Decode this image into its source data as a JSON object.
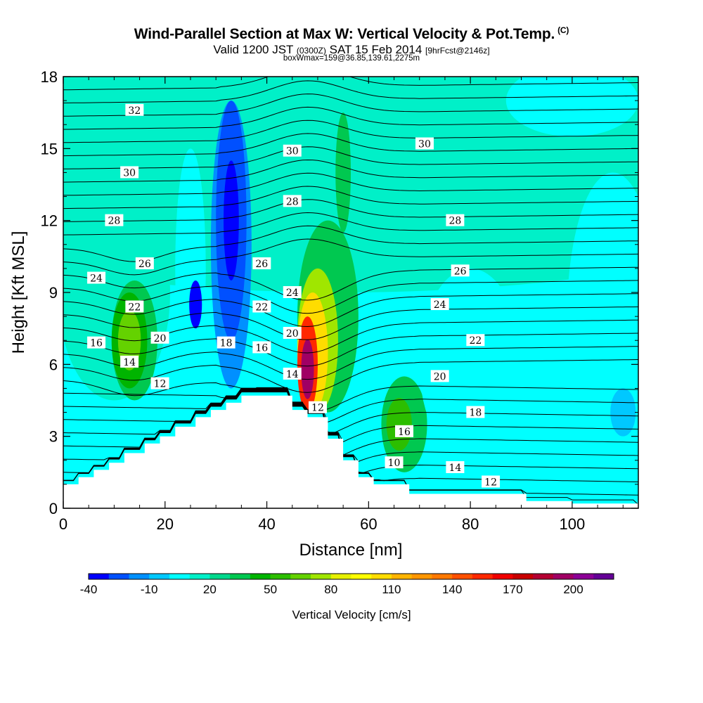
{
  "header": {
    "title": "Wind-Parallel Section at Max W: Vertical Velocity & Pot.Temp.",
    "title_mark": "(C)",
    "line2_a": "Valid 1200 JST",
    "line2_b": "(0300Z)",
    "line2_c": "SAT 15 Feb 2014",
    "line2_d": "[9hrFcst@2146z]",
    "line3": "boxWmax=159@36.85,139.61,2275m"
  },
  "chart_data": {
    "type": "heatmap",
    "xlabel": "Distance [nm]",
    "ylabel": "Height [Kft MSL]",
    "xlim": [
      0,
      113
    ],
    "ylim": [
      0,
      18
    ],
    "x_ticks": [
      "0",
      "20",
      "40",
      "60",
      "80",
      "100"
    ],
    "y_ticks": [
      "0",
      "3",
      "6",
      "9",
      "12",
      "15",
      "18"
    ],
    "colorbar": {
      "label": "Vertical Velocity [cm/s]",
      "tick_labels": [
        "-40",
        "-10",
        "20",
        "50",
        "80",
        "110",
        "140",
        "170",
        "200"
      ],
      "levels": [
        -40,
        -30,
        -20,
        -10,
        0,
        10,
        20,
        30,
        40,
        50,
        60,
        70,
        80,
        90,
        100,
        110,
        120,
        130,
        140,
        150,
        160,
        170,
        180,
        190,
        200,
        210
      ],
      "colors": [
        "#0000ff",
        "#0050ff",
        "#0090ff",
        "#00c8ff",
        "#00ffff",
        "#00f0c8",
        "#00d88c",
        "#00c850",
        "#00b400",
        "#2cbe00",
        "#64d200",
        "#a0e600",
        "#e6f000",
        "#ffff00",
        "#ffdc00",
        "#ffb400",
        "#ff9600",
        "#ff7800",
        "#ff5000",
        "#ff2800",
        "#f00000",
        "#c80000",
        "#b40032",
        "#a00064",
        "#8c0096",
        "#640096"
      ]
    },
    "terrain_kft": [
      [
        0,
        1.0
      ],
      [
        3,
        1.0
      ],
      [
        3,
        1.3
      ],
      [
        6,
        1.3
      ],
      [
        6,
        1.6
      ],
      [
        9,
        1.6
      ],
      [
        9,
        1.9
      ],
      [
        12,
        1.9
      ],
      [
        12,
        2.3
      ],
      [
        16,
        2.3
      ],
      [
        16,
        2.7
      ],
      [
        19,
        2.7
      ],
      [
        19,
        3.0
      ],
      [
        22,
        3.0
      ],
      [
        22,
        3.4
      ],
      [
        26,
        3.4
      ],
      [
        26,
        3.8
      ],
      [
        29,
        3.8
      ],
      [
        29,
        4.1
      ],
      [
        32,
        4.1
      ],
      [
        32,
        4.4
      ],
      [
        35,
        4.4
      ],
      [
        35,
        4.7
      ],
      [
        45,
        4.7
      ],
      [
        45,
        4.1
      ],
      [
        48,
        4.1
      ],
      [
        48,
        3.8
      ],
      [
        52,
        3.8
      ],
      [
        52,
        2.9
      ],
      [
        55,
        2.9
      ],
      [
        55,
        2.0
      ],
      [
        58,
        2.0
      ],
      [
        58,
        1.3
      ],
      [
        61,
        1.3
      ],
      [
        61,
        1.0
      ],
      [
        68,
        1.0
      ],
      [
        68,
        0.6
      ],
      [
        91,
        0.6
      ],
      [
        91,
        0.3
      ],
      [
        100,
        0.3
      ],
      [
        100,
        0.2
      ],
      [
        113,
        0.2
      ],
      [
        113,
        0
      ]
    ],
    "vertical_velocity_features": [
      {
        "x": 55,
        "y": 18,
        "w": 260,
        "h": 18,
        "value": 10
      },
      {
        "x": 100,
        "y": 17,
        "w": 26,
        "h": 3,
        "value": 0
      },
      {
        "x": 10,
        "y": 9,
        "w": 22,
        "h": 9,
        "value": 10
      },
      {
        "x": 14,
        "y": 7,
        "w": 9,
        "h": 5,
        "value": 30
      },
      {
        "x": 13,
        "y": 7,
        "w": 7,
        "h": 4,
        "value": 45
      },
      {
        "x": 13,
        "y": 7,
        "w": 4.5,
        "h": 2.5,
        "value": 60
      },
      {
        "x": 25,
        "y": 10,
        "w": 6,
        "h": 10,
        "value": 0
      },
      {
        "x": 33,
        "y": 11,
        "w": 8,
        "h": 12,
        "value": -20
      },
      {
        "x": 33,
        "y": 12,
        "w": 6,
        "h": 10,
        "value": -30
      },
      {
        "x": 33,
        "y": 12,
        "w": 3,
        "h": 5,
        "value": -40
      },
      {
        "x": 26,
        "y": 8.5,
        "w": 2.5,
        "h": 2,
        "value": -40
      },
      {
        "x": 52,
        "y": 8,
        "w": 12,
        "h": 8,
        "value": 30
      },
      {
        "x": 50,
        "y": 7,
        "w": 8,
        "h": 6,
        "value": 70
      },
      {
        "x": 49,
        "y": 6.5,
        "w": 6,
        "h": 5,
        "value": 100
      },
      {
        "x": 48,
        "y": 6,
        "w": 4,
        "h": 4,
        "value": 150
      },
      {
        "x": 48,
        "y": 5.8,
        "w": 2.5,
        "h": 2.5,
        "value": 190
      },
      {
        "x": 55,
        "y": 14,
        "w": 3,
        "h": 5,
        "value": 30
      },
      {
        "x": 67,
        "y": 3.5,
        "w": 9,
        "h": 4,
        "value": 30
      },
      {
        "x": 66,
        "y": 3.5,
        "w": 5,
        "h": 2.2,
        "value": 50
      },
      {
        "x": 80,
        "y": 6,
        "w": 20,
        "h": 8,
        "value": 0
      },
      {
        "x": 108,
        "y": 8,
        "w": 18,
        "h": 12,
        "value": 0
      },
      {
        "x": 110,
        "y": 4,
        "w": 5,
        "h": 2,
        "value": -10
      }
    ],
    "theta_contours_degC": [
      8,
      10,
      12,
      14,
      16,
      18,
      20,
      22,
      24,
      26,
      28,
      30,
      32
    ],
    "theta_contour_labels": [
      {
        "text": "32",
        "x": 14,
        "y": 16.6
      },
      {
        "text": "30",
        "x": 13,
        "y": 14.0
      },
      {
        "text": "28",
        "x": 10,
        "y": 12.0
      },
      {
        "text": "24",
        "x": 6.5,
        "y": 9.6
      },
      {
        "text": "26",
        "x": 16,
        "y": 10.2
      },
      {
        "text": "22",
        "x": 14,
        "y": 8.4
      },
      {
        "text": "16",
        "x": 6.5,
        "y": 6.9
      },
      {
        "text": "20",
        "x": 19,
        "y": 7.1
      },
      {
        "text": "14",
        "x": 13,
        "y": 6.1
      },
      {
        "text": "12",
        "x": 19,
        "y": 5.2
      },
      {
        "text": "18",
        "x": 32,
        "y": 6.9
      },
      {
        "text": "30",
        "x": 45,
        "y": 14.9
      },
      {
        "text": "28",
        "x": 45,
        "y": 12.8
      },
      {
        "text": "26",
        "x": 39,
        "y": 10.2
      },
      {
        "text": "24",
        "x": 45,
        "y": 9.0
      },
      {
        "text": "22",
        "x": 39,
        "y": 8.4
      },
      {
        "text": "20",
        "x": 45,
        "y": 7.3
      },
      {
        "text": "16",
        "x": 39,
        "y": 6.7
      },
      {
        "text": "14",
        "x": 45,
        "y": 5.6
      },
      {
        "text": "12",
        "x": 50,
        "y": 4.2
      },
      {
        "text": "30",
        "x": 71,
        "y": 15.2
      },
      {
        "text": "28",
        "x": 77,
        "y": 12.0
      },
      {
        "text": "26",
        "x": 78,
        "y": 9.9
      },
      {
        "text": "24",
        "x": 74,
        "y": 8.5
      },
      {
        "text": "22",
        "x": 81,
        "y": 7.0
      },
      {
        "text": "20",
        "x": 74,
        "y": 5.5
      },
      {
        "text": "18",
        "x": 81,
        "y": 4.0
      },
      {
        "text": "16",
        "x": 67,
        "y": 3.2
      },
      {
        "text": "14",
        "x": 77,
        "y": 1.7
      },
      {
        "text": "12",
        "x": 84,
        "y": 1.1
      },
      {
        "text": "10",
        "x": 65,
        "y": 1.9
      }
    ]
  }
}
